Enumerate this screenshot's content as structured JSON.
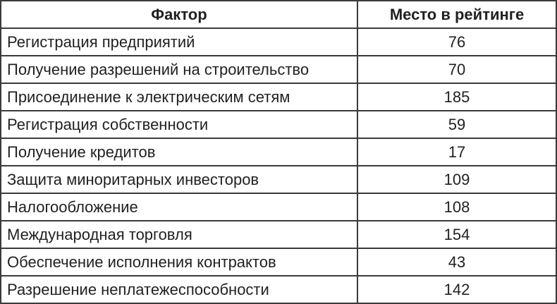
{
  "table": {
    "headers": [
      "Фактор",
      "Место в рейтинге"
    ],
    "rows": [
      {
        "factor": "Регистрация предприятий",
        "rank": "76"
      },
      {
        "factor": "Получение разрешений на строительство",
        "rank": "70"
      },
      {
        "factor": "Присоединение к электрическим сетям",
        "rank": "185"
      },
      {
        "factor": "Регистрация собственности",
        "rank": "59"
      },
      {
        "factor": "Получение кредитов",
        "rank": "17"
      },
      {
        "factor": "Защита миноритарных инвесторов",
        "rank": "109"
      },
      {
        "factor": "Налогообложение",
        "rank": "108"
      },
      {
        "factor": "Международная торговля",
        "rank": "154"
      },
      {
        "factor": "Обеспечение исполнения контрактов",
        "rank": "43"
      },
      {
        "factor": "Разрешение неплатежеспособности",
        "rank": "142"
      }
    ]
  }
}
